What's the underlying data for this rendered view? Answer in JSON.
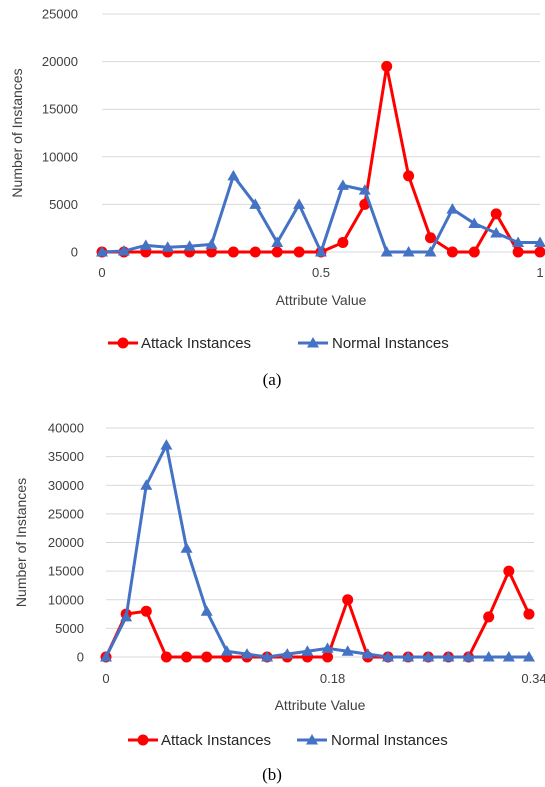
{
  "chart_data": [
    {
      "type": "line",
      "caption": "(a)",
      "xlabel": "Attribute Value",
      "ylabel": "Number of Instances",
      "xlim": [
        0,
        1
      ],
      "ylim": [
        0,
        25000
      ],
      "x_ticks": [
        "0",
        "0.5",
        "1"
      ],
      "y_ticks": [
        "0",
        "5000",
        "10000",
        "15000",
        "20000",
        "25000"
      ],
      "grid": true,
      "legend_position": "bottom",
      "x": [
        0,
        0.05,
        0.1,
        0.15,
        0.2,
        0.25,
        0.3,
        0.35,
        0.4,
        0.45,
        0.5,
        0.55,
        0.6,
        0.65,
        0.7,
        0.75,
        0.8,
        0.85,
        0.9,
        0.95,
        1.0
      ],
      "series": [
        {
          "name": "Attack Instances",
          "color": "#ff0000",
          "marker": "circle",
          "values": [
            0,
            0,
            0,
            0,
            0,
            0,
            0,
            0,
            0,
            0,
            0,
            1000,
            5000,
            19500,
            8000,
            1500,
            0,
            0,
            4000,
            0,
            0
          ]
        },
        {
          "name": "Normal Instances",
          "color": "#4472c4",
          "marker": "triangle",
          "values": [
            0,
            100,
            700,
            500,
            600,
            800,
            8000,
            5000,
            1000,
            5000,
            0,
            7000,
            6500,
            0,
            0,
            0,
            4500,
            3000,
            2000,
            1000,
            1000
          ]
        }
      ]
    },
    {
      "type": "line",
      "caption": "(b)",
      "xlabel": "Attribute Value",
      "ylabel": "Number of Instances",
      "xlim": [
        0,
        0.34
      ],
      "ylim": [
        0,
        40000
      ],
      "x_ticks": [
        "0",
        "0.18",
        "0.34"
      ],
      "y_ticks": [
        "0",
        "5000",
        "10000",
        "15000",
        "20000",
        "25000",
        "30000",
        "35000",
        "40000"
      ],
      "grid": true,
      "legend_position": "bottom",
      "x": [
        0,
        0.016,
        0.032,
        0.048,
        0.064,
        0.08,
        0.096,
        0.112,
        0.128,
        0.144,
        0.16,
        0.176,
        0.192,
        0.208,
        0.224,
        0.24,
        0.256,
        0.272,
        0.288,
        0.304,
        0.32,
        0.336
      ],
      "series": [
        {
          "name": "Attack Instances",
          "color": "#ff0000",
          "marker": "circle",
          "values": [
            0,
            7500,
            8000,
            0,
            0,
            0,
            0,
            0,
            0,
            0,
            0,
            0,
            10000,
            0,
            0,
            0,
            0,
            0,
            0,
            7000,
            15000,
            7500
          ]
        },
        {
          "name": "Normal Instances",
          "color": "#4472c4",
          "marker": "triangle",
          "values": [
            0,
            7000,
            30000,
            37000,
            19000,
            8000,
            1000,
            500,
            0,
            500,
            1000,
            1500,
            1000,
            500,
            0,
            0,
            0,
            0,
            0,
            0,
            0,
            0
          ]
        }
      ]
    }
  ]
}
